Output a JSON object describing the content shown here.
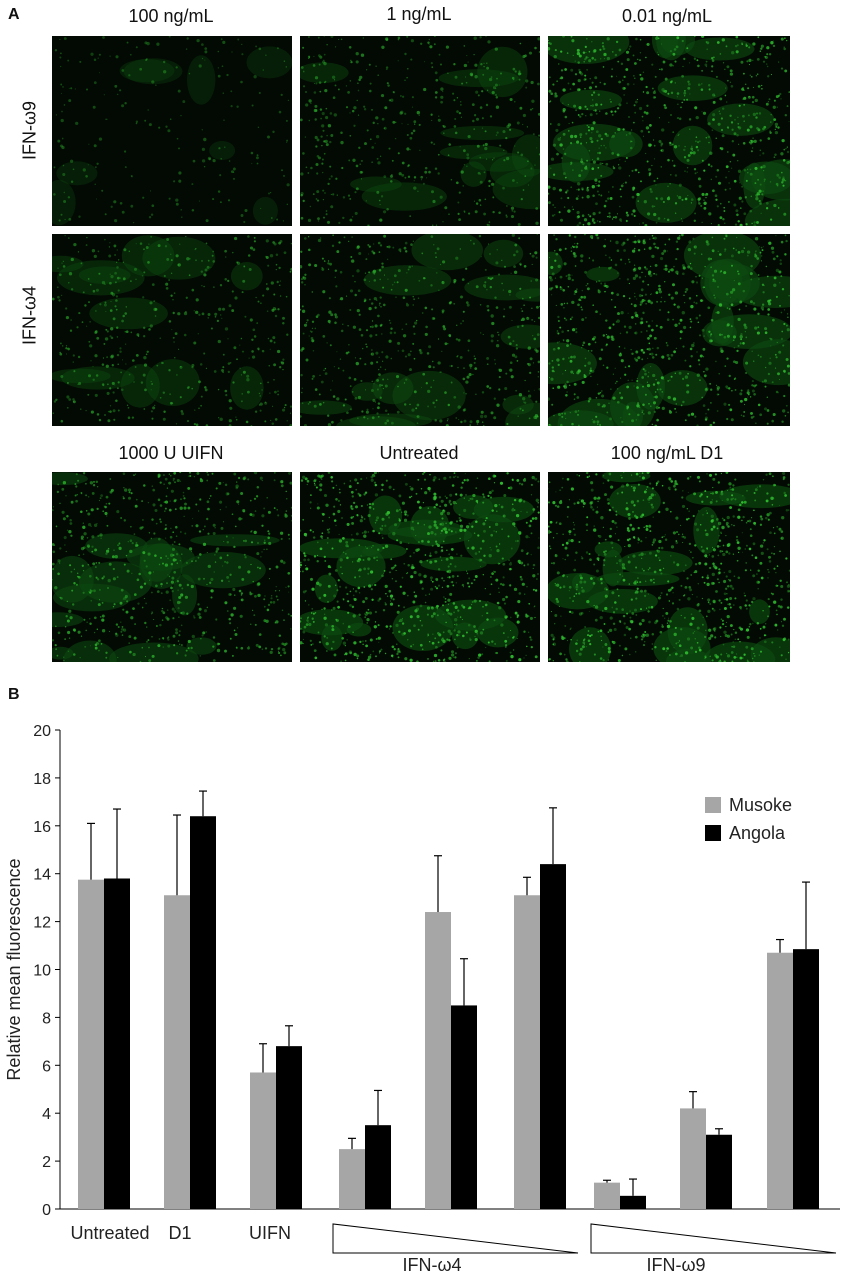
{
  "panel_a": {
    "letter": "A",
    "column_labels_top": [
      "100 ng/mL",
      "1 ng/mL",
      "0.01 ng/mL"
    ],
    "row_labels": [
      "IFN-ω9",
      "IFN-ω4"
    ],
    "column_labels_bottom": [
      "1000 U UIFN",
      "Untreated",
      "100 ng/mL D1"
    ],
    "image_color": "#2fbf2f",
    "image_brightness": [
      0.15,
      0.45,
      0.85,
      0.45,
      0.55,
      0.85,
      0.7,
      0.95,
      0.95
    ]
  },
  "panel_b": {
    "letter": "B"
  },
  "chart_data": {
    "type": "bar",
    "ylabel": "Relative mean fluorescence",
    "ylim": [
      0,
      20
    ],
    "yticks": [
      "0",
      "2",
      "4",
      "6",
      "8",
      "10",
      "12",
      "14",
      "16",
      "18",
      "20"
    ],
    "categories": [
      "Untreated",
      "D1",
      "UIFN",
      "",
      "",
      "",
      "",
      "",
      ""
    ],
    "group_labels": [
      "IFN-ω4",
      "IFN-ω9"
    ],
    "series": [
      {
        "name": "Musoke",
        "color": "#a6a6a6",
        "values": [
          13.75,
          13.1,
          5.7,
          2.5,
          12.4,
          13.1,
          1.1,
          4.2,
          10.7
        ],
        "errors": [
          2.35,
          3.35,
          1.2,
          0.45,
          2.35,
          0.75,
          0.1,
          0.7,
          0.55
        ]
      },
      {
        "name": "Angola",
        "color": "#000000",
        "values": [
          13.8,
          16.4,
          6.8,
          3.5,
          8.5,
          14.4,
          0.55,
          3.1,
          10.85
        ],
        "errors": [
          2.9,
          1.05,
          0.85,
          1.45,
          1.95,
          2.35,
          0.7,
          0.25,
          2.8
        ]
      }
    ],
    "legend_position": "top-right",
    "grid": false
  }
}
